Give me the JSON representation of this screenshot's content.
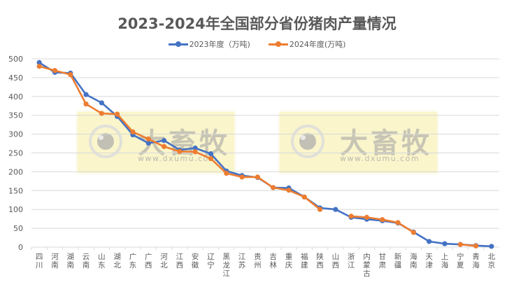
{
  "chart_data": {
    "type": "line",
    "title": "2023-2024年全国部分省份猪肉产量情况",
    "xlabel": "",
    "ylabel": "",
    "ylim": [
      0,
      500
    ],
    "yticks": [
      0,
      50,
      100,
      150,
      200,
      250,
      300,
      350,
      400,
      450,
      500
    ],
    "grid": true,
    "legend_position": "top",
    "categories": [
      "四川",
      "河南",
      "湖南",
      "云南",
      "山东",
      "湖北",
      "广东",
      "广西",
      "河北",
      "江西",
      "安徽",
      "辽宁",
      "黑龙江",
      "江苏",
      "贵州",
      "吉林",
      "重庆",
      "福建",
      "陕西",
      "山西",
      "浙江",
      "内蒙古",
      "甘肃",
      "新疆",
      "海南",
      "天津",
      "上海",
      "宁夏",
      "青海",
      "北京"
    ],
    "series": [
      {
        "name": "2023年度（万吨)",
        "color": "#4472C4",
        "values": [
          490,
          464,
          462,
          405,
          383,
          347,
          298,
          276,
          283,
          258,
          263,
          248,
          202,
          190,
          185,
          158,
          157,
          133,
          104,
          100,
          79,
          74,
          70,
          64,
          40,
          15,
          9,
          7,
          4,
          2
        ]
      },
      {
        "name": "2024年度(万吨)",
        "color": "#ED7D31",
        "values": [
          480,
          469,
          458,
          380,
          355,
          353,
          306,
          287,
          267,
          254,
          253,
          235,
          196,
          186,
          186,
          158,
          151,
          133,
          100,
          null,
          82,
          79,
          73,
          65,
          39,
          null,
          null,
          7,
          3,
          null
        ]
      }
    ]
  },
  "watermarks": [
    {
      "brand": "大畜牧",
      "url": "www.dxumu.com"
    },
    {
      "brand": "大畜牧",
      "url": "www.dxumu.com"
    }
  ],
  "colors": {
    "title": "#595959",
    "gridline": "#D9D9D9",
    "axis_text": "#595959"
  }
}
